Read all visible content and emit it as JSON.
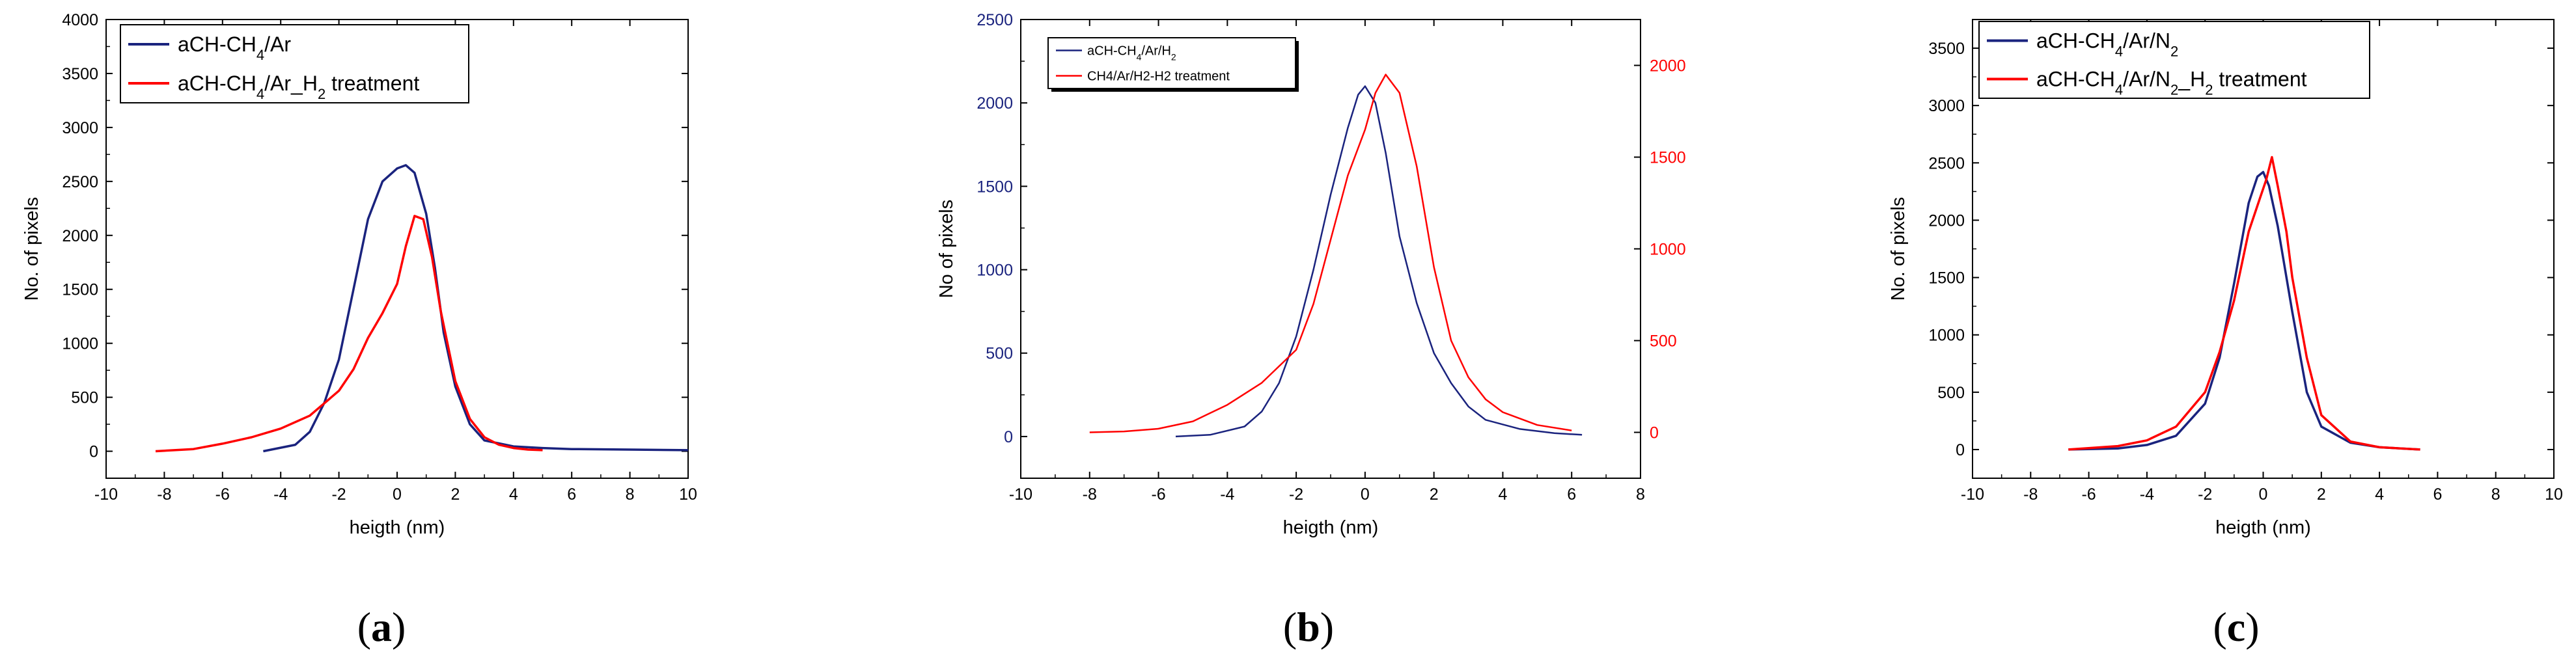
{
  "colors": {
    "blue": "#1a237e",
    "red": "#ff0000",
    "axis": "#000000"
  },
  "chart_data": [
    {
      "type": "line",
      "panel": "a",
      "caption": "a",
      "xlabel": "heigth (nm)",
      "ylabel": "No. of pixels",
      "xlim": [
        -10,
        10
      ],
      "ylim": [
        -250,
        4000
      ],
      "xticks": [
        -10,
        -8,
        -6,
        -4,
        -2,
        0,
        2,
        4,
        6,
        8,
        10
      ],
      "yticks": [
        0,
        500,
        1000,
        1500,
        2000,
        2500,
        3000,
        3500,
        4000
      ],
      "legend_pos": "top-left",
      "series": [
        {
          "name": "aCH-CH4/Ar",
          "label_base": "aCH-CH",
          "label_sub": "4",
          "label_rest": "/Ar",
          "color": "#1a237e",
          "x": [
            -4.6,
            -3.5,
            -3.0,
            -2.5,
            -2.0,
            -1.5,
            -1.0,
            -0.5,
            0.0,
            0.3,
            0.6,
            1.0,
            1.3,
            1.6,
            2.0,
            2.5,
            3.0,
            4.0,
            5.0,
            6.0,
            8.0,
            10.0
          ],
          "y": [
            0,
            60,
            180,
            450,
            850,
            1500,
            2150,
            2500,
            2620,
            2650,
            2580,
            2200,
            1700,
            1100,
            600,
            250,
            100,
            45,
            30,
            20,
            15,
            10
          ]
        },
        {
          "name": "aCH-CH4/Ar_H2 treatment",
          "label_base": "aCH-CH",
          "label_sub": "4",
          "label_mid": "/Ar_H",
          "label_sub2": "2",
          "label_rest": " treatment",
          "color": "#ff0000",
          "x": [
            -8.3,
            -7.0,
            -6.0,
            -5.0,
            -4.0,
            -3.0,
            -2.0,
            -1.5,
            -1.0,
            -0.5,
            0.0,
            0.3,
            0.6,
            0.9,
            1.2,
            1.5,
            2.0,
            2.5,
            3.0,
            3.5,
            4.0,
            4.5,
            5.0
          ],
          "y": [
            0,
            20,
            70,
            130,
            210,
            330,
            560,
            760,
            1050,
            1280,
            1550,
            1900,
            2180,
            2150,
            1800,
            1300,
            650,
            300,
            130,
            60,
            30,
            15,
            10
          ]
        }
      ]
    },
    {
      "type": "line",
      "panel": "b",
      "caption": "b",
      "xlabel": "heigth (nm)",
      "ylabel": "No of pixels",
      "xlim": [
        -10,
        8
      ],
      "ylim": [
        -250,
        2500
      ],
      "y2lim": [
        -250,
        2250
      ],
      "xticks": [
        -10,
        -8,
        -6,
        -4,
        -2,
        0,
        2,
        4,
        6,
        8
      ],
      "yticks": [
        0,
        500,
        1000,
        1500,
        2000,
        2500
      ],
      "y2ticks": [
        0,
        500,
        1000,
        1500,
        2000
      ],
      "legend_pos": "top-left",
      "series": [
        {
          "name": "aCH-CH4/Ar/H2",
          "label_base": "aCH-CH",
          "label_sub": "4",
          "label_mid": "/Ar/H",
          "label_sub2": "2",
          "label_rest": "",
          "color": "#1a237e",
          "axis": "left",
          "x": [
            -5.5,
            -4.5,
            -3.5,
            -3.0,
            -2.5,
            -2.0,
            -1.5,
            -1.0,
            -0.5,
            -0.2,
            0.0,
            0.3,
            0.6,
            1.0,
            1.5,
            2.0,
            2.5,
            3.0,
            3.5,
            4.5,
            5.5,
            6.3
          ],
          "y": [
            0,
            10,
            60,
            150,
            320,
            600,
            1000,
            1450,
            1850,
            2050,
            2100,
            2000,
            1700,
            1200,
            800,
            500,
            320,
            180,
            100,
            45,
            20,
            10
          ]
        },
        {
          "name": "CH4/Ar/H2-H2 treatment",
          "label_full": "CH4/Ar/H2-H2 treatment",
          "color": "#ff0000",
          "axis": "right",
          "x": [
            -8.0,
            -7.0,
            -6.0,
            -5.0,
            -4.0,
            -3.0,
            -2.0,
            -1.5,
            -1.0,
            -0.5,
            0.0,
            0.3,
            0.6,
            1.0,
            1.5,
            2.0,
            2.5,
            3.0,
            3.5,
            4.0,
            5.0,
            6.0
          ],
          "y": [
            0,
            5,
            20,
            60,
            150,
            270,
            450,
            700,
            1050,
            1400,
            1650,
            1850,
            1950,
            1850,
            1450,
            900,
            500,
            300,
            180,
            110,
            40,
            10
          ]
        }
      ]
    },
    {
      "type": "line",
      "panel": "c",
      "caption": "c",
      "xlabel": "heigth (nm)",
      "ylabel": "No. of pixels",
      "xlim": [
        -10,
        10
      ],
      "ylim": [
        -250,
        3750
      ],
      "xticks": [
        -10,
        -8,
        -6,
        -4,
        -2,
        0,
        2,
        4,
        6,
        8,
        10
      ],
      "yticks": [
        0,
        500,
        1000,
        1500,
        2000,
        2500,
        3000,
        3500
      ],
      "legend_pos": "top-left",
      "series": [
        {
          "name": "aCH-CH4/Ar/N2",
          "label_base": "aCH-CH",
          "label_sub": "4",
          "label_mid": "/Ar/N",
          "label_sub2": "2",
          "label_rest": "",
          "color": "#1a237e",
          "x": [
            -6.7,
            -5.0,
            -4.0,
            -3.0,
            -2.0,
            -1.5,
            -1.0,
            -0.5,
            -0.2,
            0.0,
            0.2,
            0.5,
            1.0,
            1.5,
            2.0,
            3.0,
            4.0,
            5.4
          ],
          "y": [
            0,
            10,
            40,
            120,
            400,
            800,
            1450,
            2150,
            2380,
            2420,
            2300,
            1950,
            1200,
            500,
            200,
            60,
            20,
            0
          ]
        },
        {
          "name": "aCH-CH4/Ar/N2_H2 treatment",
          "label_base": "aCH-CH",
          "label_sub": "4",
          "label_mid": "/Ar/N",
          "label_sub2": "2",
          "label_mid2": "_H",
          "label_sub3": "2",
          "label_rest": " treatment",
          "color": "#ff0000",
          "x": [
            -6.7,
            -5.0,
            -4.0,
            -3.0,
            -2.0,
            -1.5,
            -1.0,
            -0.5,
            -0.1,
            0.1,
            0.3,
            0.5,
            0.8,
            1.0,
            1.5,
            2.0,
            3.0,
            4.0,
            5.4
          ],
          "y": [
            0,
            30,
            80,
            200,
            500,
            850,
            1300,
            1900,
            2200,
            2350,
            2550,
            2300,
            1900,
            1500,
            800,
            300,
            70,
            20,
            0
          ]
        }
      ]
    }
  ]
}
